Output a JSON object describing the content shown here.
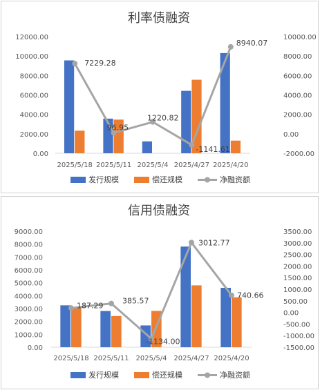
{
  "chart_data": [
    {
      "type": "bar",
      "title": "利率债融资",
      "categories": [
        "2025/5/18",
        "2025/5/11",
        "2025/5/4",
        "2025/4/27",
        "2025/4/20"
      ],
      "ylim_left": [
        0,
        12000
      ],
      "yticks_left": [
        "0.00",
        "2000.00",
        "4000.00",
        "6000.00",
        "8000.00",
        "10000.00",
        "12000.00"
      ],
      "ylim_right": [
        -2000,
        10000
      ],
      "yticks_right": [
        "-2000.00",
        "0.00",
        "2000.00",
        "4000.00",
        "6000.00",
        "8000.00",
        "10000.00"
      ],
      "series": [
        {
          "name": "发行规模",
          "type": "bar",
          "axis": "left",
          "color": "#4472C4",
          "values": [
            9550,
            3560,
            1220,
            6420,
            10300
          ]
        },
        {
          "name": "偿还规模",
          "type": "bar",
          "axis": "left",
          "color": "#ED7D31",
          "values": [
            2320,
            3460,
            0,
            7560,
            1300
          ]
        },
        {
          "name": "净融资额",
          "type": "line",
          "axis": "right",
          "color": "#A5A5A5",
          "values": [
            7229.28,
            96.95,
            1220.82,
            -1141.61,
            8940.07
          ]
        }
      ],
      "data_labels": [
        "7229.28",
        "96.95",
        "1220.82",
        "-1141.61",
        "8940.07"
      ],
      "grid": false,
      "legend": "bottom"
    },
    {
      "type": "bar",
      "title": "信用债融资",
      "categories": [
        "2025/5/18",
        "2025/5/11",
        "2025/5/4",
        "2025/4/27",
        "2025/4/20"
      ],
      "ylim_left": [
        0,
        9000
      ],
      "yticks_left": [
        "0.00",
        "1000.00",
        "2000.00",
        "3000.00",
        "4000.00",
        "5000.00",
        "6000.00",
        "7000.00",
        "8000.00",
        "9000.00"
      ],
      "ylim_right": [
        -1500,
        3500
      ],
      "yticks_right": [
        "-1500.00",
        "-1000.00",
        "-500.00",
        "0.00",
        "500.00",
        "1000.00",
        "1500.00",
        "2000.00",
        "2500.00",
        "3000.00",
        "3500.00"
      ],
      "series": [
        {
          "name": "发行规模",
          "type": "bar",
          "axis": "left",
          "color": "#4472C4",
          "values": [
            3250,
            2810,
            1690,
            7810,
            4610
          ]
        },
        {
          "name": "偿还规模",
          "type": "bar",
          "axis": "left",
          "color": "#ED7D31",
          "values": [
            3060,
            2420,
            2820,
            4800,
            3870
          ]
        },
        {
          "name": "净融资额",
          "type": "line",
          "axis": "right",
          "color": "#A5A5A5",
          "values": [
            187.29,
            385.57,
            -1134.0,
            3012.77,
            740.66
          ]
        }
      ],
      "data_labels": [
        "187.29",
        "385.57",
        "-1134.00",
        "3012.77",
        "740.66"
      ],
      "grid": false,
      "legend": "bottom"
    }
  ]
}
